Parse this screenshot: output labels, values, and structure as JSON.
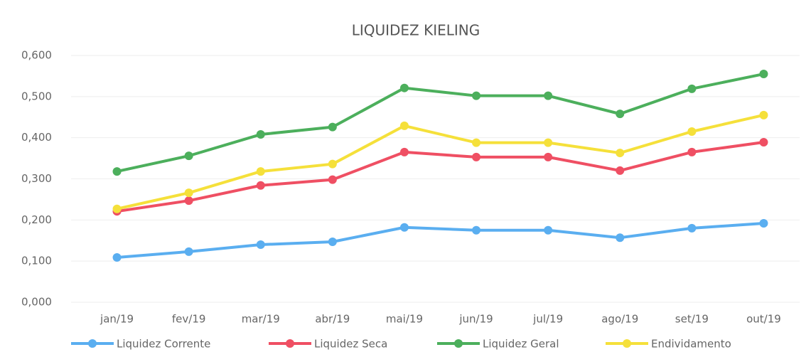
{
  "chart_data": {
    "type": "line",
    "title": "LIQUIDEZ KIELING",
    "categories": [
      "jan/19",
      "fev/19",
      "mar/19",
      "abr/19",
      "mai/19",
      "jun/19",
      "jul/19",
      "ago/19",
      "set/19",
      "out/19"
    ],
    "series": [
      {
        "name": "Liquidez Corrente",
        "color": "#5aaef0",
        "values": [
          0.109,
          0.123,
          0.14,
          0.147,
          0.182,
          0.175,
          0.175,
          0.157,
          0.18,
          0.192
        ]
      },
      {
        "name": "Liquidez Seca",
        "color": "#ef4f63",
        "values": [
          0.221,
          0.247,
          0.284,
          0.298,
          0.365,
          0.353,
          0.353,
          0.32,
          0.365,
          0.389
        ]
      },
      {
        "name": "Liquidez Geral",
        "color": "#4caf5c",
        "values": [
          0.318,
          0.356,
          0.408,
          0.426,
          0.521,
          0.502,
          0.502,
          0.458,
          0.519,
          0.555
        ]
      },
      {
        "name": "Endividamento",
        "color": "#f5e03a",
        "values": [
          0.227,
          0.266,
          0.318,
          0.336,
          0.429,
          0.388,
          0.388,
          0.363,
          0.415,
          0.455
        ]
      }
    ],
    "ylim": [
      0,
      0.6
    ],
    "yticks": [
      {
        "value": 0,
        "label": "0,000"
      },
      {
        "value": 0.1,
        "label": "0,100"
      },
      {
        "value": 0.2,
        "label": "0,200"
      },
      {
        "value": 0.3,
        "label": "0,300"
      },
      {
        "value": 0.4,
        "label": "0,400"
      },
      {
        "value": 0.5,
        "label": "0,500"
      },
      {
        "value": 0.6,
        "label": "0,600"
      }
    ],
    "grid": true,
    "legend": "bottom"
  }
}
